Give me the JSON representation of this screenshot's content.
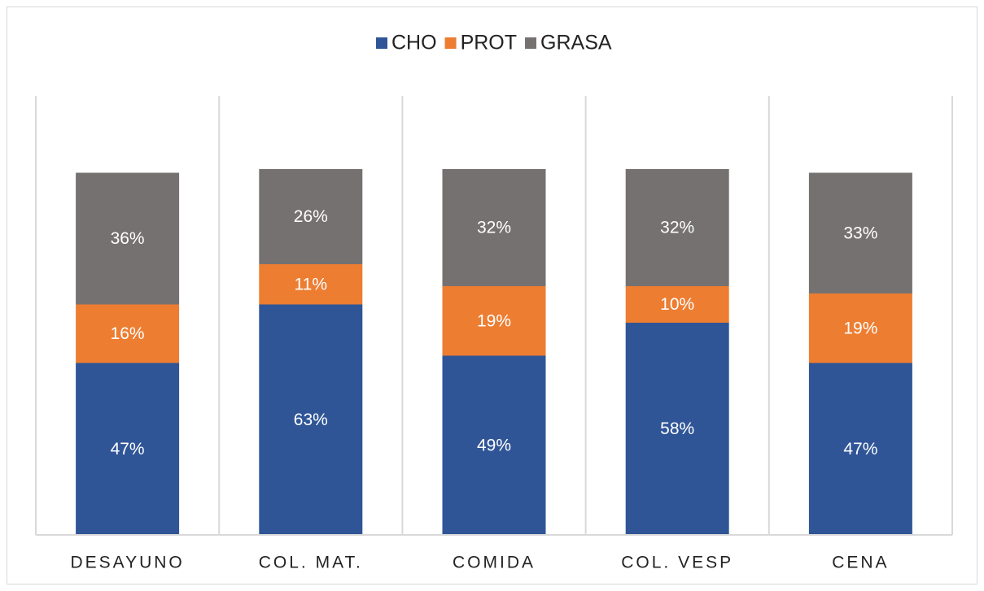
{
  "chart_data": {
    "type": "stacked_bar",
    "categories": [
      "DESAYUNO",
      "COL. MAT.",
      "COMIDA",
      "COL. VESP",
      "CENA"
    ],
    "series": [
      {
        "name": "CHO",
        "color": "#2f5597",
        "values": [
          47,
          63,
          49,
          58,
          47
        ],
        "value_labels": [
          "47%",
          "63%",
          "49%",
          "58%",
          "47%"
        ]
      },
      {
        "name": "PROT",
        "color": "#ed7d31",
        "values": [
          16,
          11,
          19,
          10,
          19
        ],
        "value_labels": [
          "16%",
          "11%",
          "19%",
          "10%",
          "19%"
        ]
      },
      {
        "name": "GRASA",
        "color": "#767171",
        "values": [
          36,
          26,
          32,
          32,
          33
        ],
        "value_labels": [
          "36%",
          "26%",
          "32%",
          "32%",
          "33%"
        ]
      }
    ],
    "ylim": [
      0,
      120
    ],
    "legend": "top"
  }
}
